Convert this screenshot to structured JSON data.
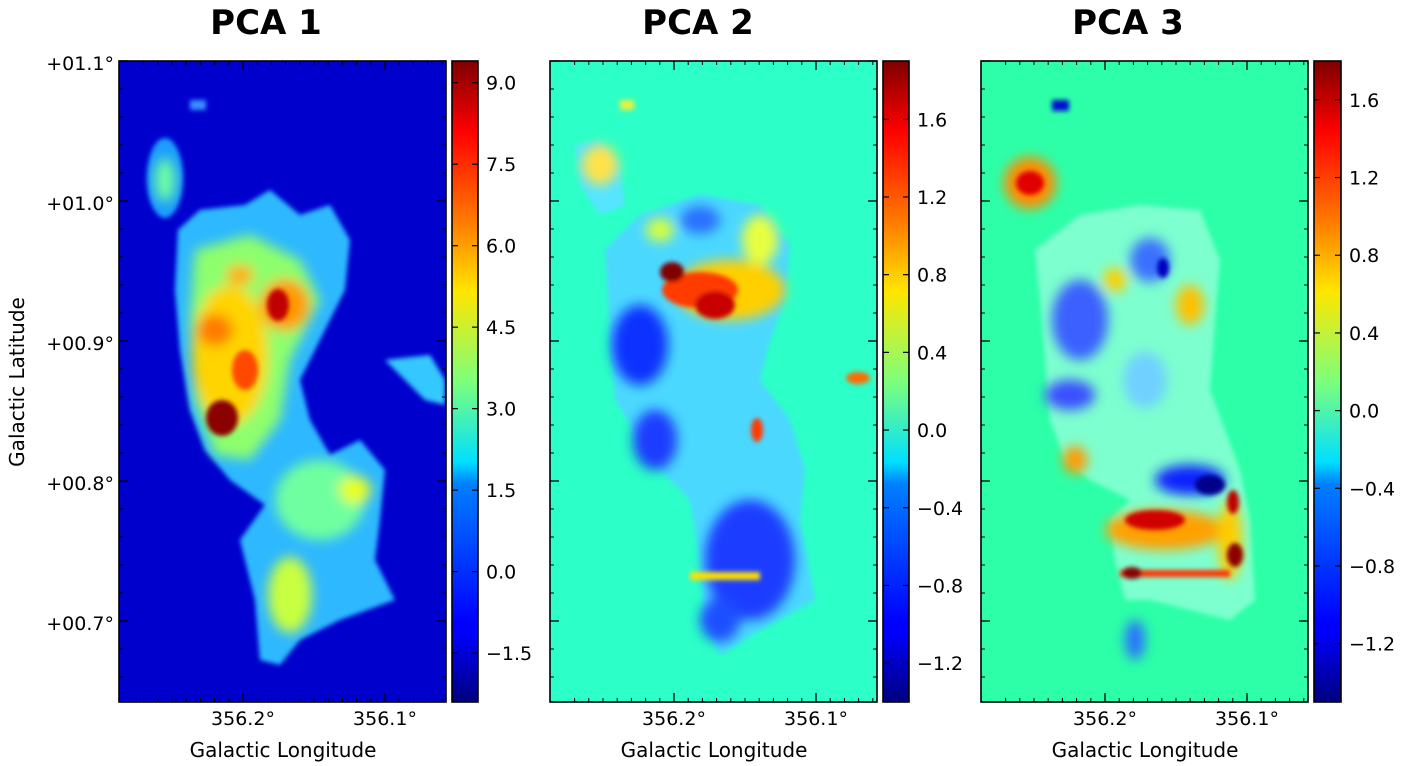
{
  "chart_data": [
    {
      "type": "heatmap",
      "title": "PCA 1",
      "xlabel": "Galactic Longitude",
      "ylabel": "Galactic Latitude",
      "x_ticks": [
        "356.2°",
        "356.1°"
      ],
      "y_ticks": [
        "+01.1°",
        "+01.0°",
        "+00.9°",
        "+00.8°",
        "+00.7°"
      ],
      "colorbar": {
        "colormap": "jet",
        "range": [
          -2.4,
          9.4
        ],
        "ticks": [
          "9.0",
          "7.5",
          "6.0",
          "4.5",
          "3.0",
          "1.5",
          "0.0",
          "−1.5"
        ]
      },
      "background_value": 0.0,
      "peak_value": 9.4,
      "features": [
        {
          "where": "left-center clump",
          "value": 9.3
        },
        {
          "where": "upper-center clump",
          "value": 8.6
        },
        {
          "where": "left-middle ridge",
          "value": 7.6
        },
        {
          "where": "small detached cloud, top-left",
          "value": 2.8
        },
        {
          "where": "lower tail",
          "value": 4.8
        }
      ]
    },
    {
      "type": "heatmap",
      "title": "PCA 2",
      "xlabel": "Galactic Longitude",
      "ylabel": "",
      "x_ticks": [
        "356.2°",
        "356.1°"
      ],
      "y_ticks": [],
      "colorbar": {
        "colormap": "jet",
        "range": [
          -1.4,
          1.9
        ],
        "ticks": [
          "1.6",
          "1.2",
          "0.8",
          "0.4",
          "0.0",
          "−0.4",
          "−0.8",
          "−1.2"
        ]
      },
      "background_value": 0.0,
      "features": [
        {
          "where": "upper-center ridge",
          "value": 1.85
        },
        {
          "where": "left-middle patch",
          "value": -1.1
        },
        {
          "where": "lower body",
          "value": -1.0
        }
      ]
    },
    {
      "type": "heatmap",
      "title": "PCA 3",
      "xlabel": "Galactic Longitude",
      "ylabel": "",
      "x_ticks": [
        "356.2°",
        "356.1°"
      ],
      "y_ticks": [],
      "colorbar": {
        "colormap": "jet",
        "range": [
          -1.5,
          1.8
        ],
        "ticks": [
          "1.6",
          "1.2",
          "0.8",
          "0.4",
          "0.0",
          "−0.4",
          "−0.8",
          "−1.2"
        ]
      },
      "background_value": 0.0,
      "features": [
        {
          "where": "detached cloud, top-left",
          "value": 1.5
        },
        {
          "where": "lower band",
          "value": 1.7
        },
        {
          "where": "center-right trough",
          "value": -1.3
        },
        {
          "where": "upper-left blob",
          "value": -1.45
        }
      ]
    }
  ]
}
